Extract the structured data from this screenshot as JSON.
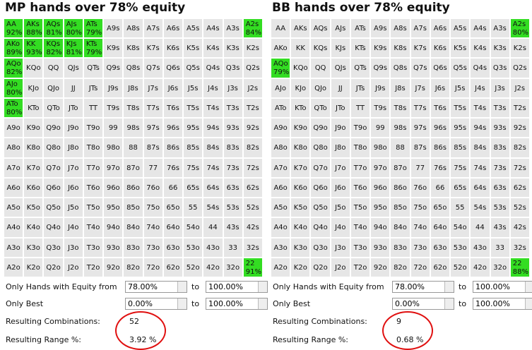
{
  "hand_grid": [
    [
      "AA",
      "AKs",
      "AQs",
      "AJs",
      "ATs",
      "A9s",
      "A8s",
      "A7s",
      "A6s",
      "A5s",
      "A4s",
      "A3s",
      "A2s"
    ],
    [
      "AKo",
      "KK",
      "KQs",
      "KJs",
      "KTs",
      "K9s",
      "K8s",
      "K7s",
      "K6s",
      "K5s",
      "K4s",
      "K3s",
      "K2s"
    ],
    [
      "AQo",
      "KQo",
      "QQ",
      "QJs",
      "QTs",
      "Q9s",
      "Q8s",
      "Q7s",
      "Q6s",
      "Q5s",
      "Q4s",
      "Q3s",
      "Q2s"
    ],
    [
      "AJo",
      "KJo",
      "QJo",
      "JJ",
      "JTs",
      "J9s",
      "J8s",
      "J7s",
      "J6s",
      "J5s",
      "J4s",
      "J3s",
      "J2s"
    ],
    [
      "ATo",
      "KTo",
      "QTo",
      "JTo",
      "TT",
      "T9s",
      "T8s",
      "T7s",
      "T6s",
      "T5s",
      "T4s",
      "T3s",
      "T2s"
    ],
    [
      "A9o",
      "K9o",
      "Q9o",
      "J9o",
      "T9o",
      "99",
      "98s",
      "97s",
      "96s",
      "95s",
      "94s",
      "93s",
      "92s"
    ],
    [
      "A8o",
      "K8o",
      "Q8o",
      "J8o",
      "T8o",
      "98o",
      "88",
      "87s",
      "86s",
      "85s",
      "84s",
      "83s",
      "82s"
    ],
    [
      "A7o",
      "K7o",
      "Q7o",
      "J7o",
      "T7o",
      "97o",
      "87o",
      "77",
      "76s",
      "75s",
      "74s",
      "73s",
      "72s"
    ],
    [
      "A6o",
      "K6o",
      "Q6o",
      "J6o",
      "T6o",
      "96o",
      "86o",
      "76o",
      "66",
      "65s",
      "64s",
      "63s",
      "62s"
    ],
    [
      "A5o",
      "K5o",
      "Q5o",
      "J5o",
      "T5o",
      "95o",
      "85o",
      "75o",
      "65o",
      "55",
      "54s",
      "53s",
      "52s"
    ],
    [
      "A4o",
      "K4o",
      "Q4o",
      "J4o",
      "T4o",
      "94o",
      "84o",
      "74o",
      "64o",
      "54o",
      "44",
      "43s",
      "42s"
    ],
    [
      "A3o",
      "K3o",
      "Q3o",
      "J3o",
      "T3o",
      "93o",
      "83o",
      "73o",
      "63o",
      "53o",
      "43o",
      "33",
      "32s"
    ],
    [
      "A2o",
      "K2o",
      "Q2o",
      "J2o",
      "T2o",
      "92o",
      "82o",
      "72o",
      "62o",
      "52o",
      "42o",
      "32o",
      "22"
    ]
  ],
  "form_labels": {
    "equity_from": "Only Hands with Equity from",
    "only_best": "Only Best",
    "to": "to",
    "combinations": "Resulting Combinations:",
    "range": "Resulting Range %:"
  },
  "panels": [
    {
      "title": "MP hands over 78% equity",
      "highlights": [
        {
          "hand": "AA",
          "equity": "92%"
        },
        {
          "hand": "AKs",
          "equity": "88%"
        },
        {
          "hand": "AQs",
          "equity": "81%"
        },
        {
          "hand": "AJs",
          "equity": "80%"
        },
        {
          "hand": "ATs",
          "equity": "79%"
        },
        {
          "hand": "A2s",
          "equity": "84%"
        },
        {
          "hand": "AKo",
          "equity": "89%"
        },
        {
          "hand": "KK",
          "equity": "93%"
        },
        {
          "hand": "KQs",
          "equity": "82%"
        },
        {
          "hand": "KJs",
          "equity": "81%"
        },
        {
          "hand": "KTs",
          "equity": "79%"
        },
        {
          "hand": "AQo",
          "equity": "82%"
        },
        {
          "hand": "AJo",
          "equity": "80%"
        },
        {
          "hand": "ATo",
          "equity": "80%"
        },
        {
          "hand": "22",
          "equity": "91%"
        }
      ],
      "equity_from": "78.00%",
      "equity_to": "100.00%",
      "best_from": "0.00%",
      "best_to": "100.00%",
      "combinations": "52",
      "range": "3.92 %"
    },
    {
      "title": "BB hands over 78% equity",
      "highlights": [
        {
          "hand": "A2s",
          "equity": "80%"
        },
        {
          "hand": "AQo",
          "equity": "79%"
        },
        {
          "hand": "22",
          "equity": "88%"
        }
      ],
      "equity_from": "78.00%",
      "equity_to": "100.00%",
      "best_from": "0.00%",
      "best_to": "100.00%",
      "combinations": "9",
      "range": "0.68 %"
    }
  ]
}
